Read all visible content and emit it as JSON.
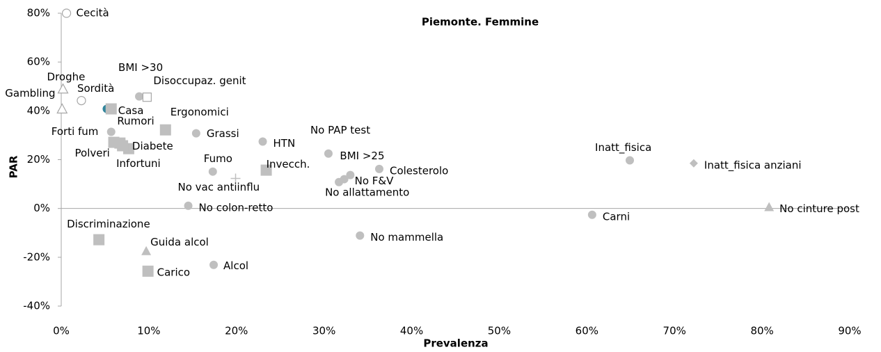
{
  "chart_data": {
    "type": "scatter",
    "title": "Piemonte. Femmine",
    "x_label": "Prevalenza",
    "y_label": "PAR",
    "labels": [
      "Cecità",
      "Droghe",
      "Gambling",
      "Sordità",
      "BMI >30",
      "Disoccupaz. genit",
      null,
      "Casa",
      "Ergonomici",
      "Rumori",
      "Forti fum",
      "Polveri",
      "Diabete",
      "Infortuni",
      "Grassi",
      "HTN",
      "No PAP test",
      "Fumo",
      "No vac antiinflu",
      "Invecch.",
      "BMI >25",
      "No F&V",
      "No allattamento",
      "Colesterolo",
      "Inatt_fisica",
      "Inatt_fisica anziani",
      "No colon-retto",
      "Carni",
      "No cinture post",
      "Discriminazione",
      "No mammella",
      "Guida alcol",
      "Carico",
      "Alcol"
    ],
    "x": [
      0.6,
      0.2,
      0.1,
      2.3,
      8.9,
      9.8,
      5.2,
      5.7,
      11.9,
      6.7,
      5.7,
      6.0,
      7.7,
      7.0,
      15.4,
      23.0,
      30.5,
      17.3,
      19.9,
      23.4,
      33.0,
      32.3,
      31.7,
      36.3,
      64.9,
      72.2,
      14.5,
      60.6,
      80.8,
      4.3,
      34.1,
      9.7,
      9.9,
      17.4
    ],
    "values": [
      80,
      49.0,
      40.8,
      44.2,
      45.9,
      45.6,
      40.8,
      40.8,
      32.2,
      26.8,
      31.4,
      27.1,
      24.5,
      25.7,
      30.8,
      27.4,
      22.5,
      15.1,
      12.3,
      15.7,
      13.7,
      12.0,
      10.8,
      16.2,
      19.7,
      18.5,
      1.1,
      -2.6,
      0.6,
      -12.8,
      -11.1,
      -17.4,
      -25.7,
      -23.1
    ],
    "markers": [
      "circle-open",
      "triangle-open",
      "triangle-open",
      "circle-open",
      "circle",
      "square-open",
      "circle",
      "square",
      "square",
      "square",
      "circle",
      "square",
      "square",
      "square",
      "circle",
      "circle",
      "circle",
      "circle",
      "plus",
      "square",
      "circle",
      "circle",
      "circle",
      "circle",
      "circle",
      "diamond",
      "circle",
      "circle",
      "triangle",
      "square",
      "circle",
      "triangle",
      "square",
      "circle"
    ],
    "colors": [
      "#a6a6a6",
      "#a6a6a6",
      "#a6a6a6",
      "#a6a6a6",
      "#bfbfbf",
      "#a6a6a6",
      "#31859c",
      "#bfbfbf",
      "#bfbfbf",
      "#bfbfbf",
      "#bfbfbf",
      "#bfbfbf",
      "#bfbfbf",
      "#bfbfbf",
      "#bfbfbf",
      "#bfbfbf",
      "#bfbfbf",
      "#bfbfbf",
      "#bfbfbf",
      "#bfbfbf",
      "#bfbfbf",
      "#bfbfbf",
      "#bfbfbf",
      "#bfbfbf",
      "#bfbfbf",
      "#bfbfbf",
      "#bfbfbf",
      "#bfbfbf",
      "#bfbfbf",
      "#bfbfbf",
      "#bfbfbf",
      "#bfbfbf",
      "#bfbfbf",
      "#bfbfbf"
    ],
    "xlim": [
      0,
      90
    ],
    "ylim": [
      -40,
      80
    ],
    "xticks": [
      {
        "value": 0,
        "label": "0%"
      },
      {
        "value": 10,
        "label": "10%"
      },
      {
        "value": 20,
        "label": "20%"
      },
      {
        "value": 30,
        "label": "30%"
      },
      {
        "value": 40,
        "label": "40%"
      },
      {
        "value": 50,
        "label": "50%"
      },
      {
        "value": 60,
        "label": "60%"
      },
      {
        "value": 70,
        "label": "70%"
      },
      {
        "value": 80,
        "label": "80%"
      },
      {
        "value": 90,
        "label": "90%"
      }
    ],
    "yticks": [
      {
        "value": -40,
        "label": "-40%"
      },
      {
        "value": -20,
        "label": "-20%"
      },
      {
        "value": 0,
        "label": "0%"
      },
      {
        "value": 20,
        "label": "20%"
      },
      {
        "value": 40,
        "label": "40%"
      },
      {
        "value": 60,
        "label": "60%"
      },
      {
        "value": 80,
        "label": "80%"
      }
    ]
  }
}
